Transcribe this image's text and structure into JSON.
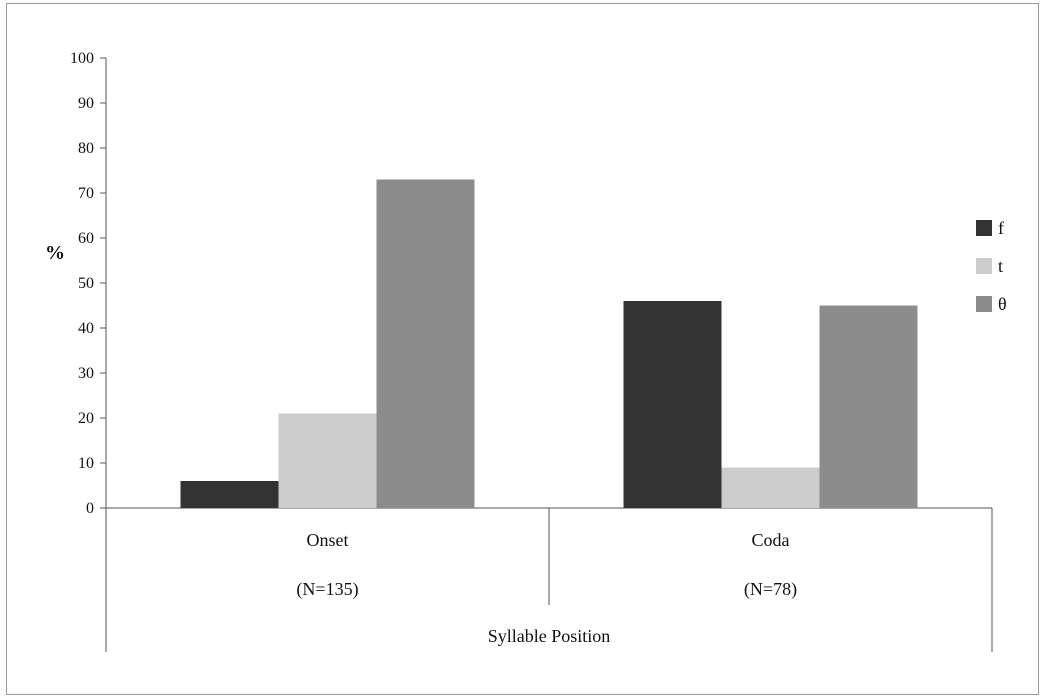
{
  "chart_data": {
    "type": "bar",
    "categories": [
      "Onset",
      "Coda"
    ],
    "category_counts": [
      "(N=135)",
      "(N=78)"
    ],
    "series": [
      {
        "name": "f",
        "values": [
          6,
          46
        ],
        "color": "#333333"
      },
      {
        "name": "t",
        "values": [
          21,
          9
        ],
        "color": "#cccccc"
      },
      {
        "name": "θ",
        "values": [
          73,
          45
        ],
        "color": "#8c8c8c"
      }
    ],
    "ylabel": "%",
    "xlabel": "Syllable Position",
    "ylim": [
      0,
      100
    ],
    "yticks": [
      0,
      10,
      20,
      30,
      40,
      50,
      60,
      70,
      80,
      90,
      100
    ],
    "grid": false,
    "legend_position": "right"
  }
}
